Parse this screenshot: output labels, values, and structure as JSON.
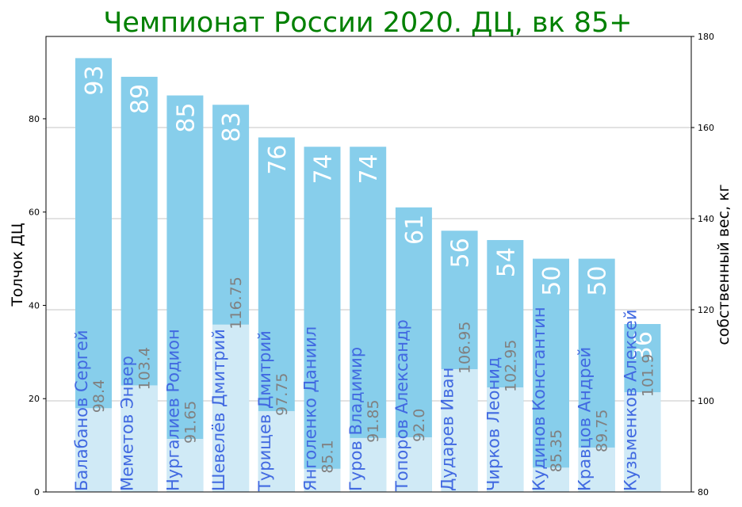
{
  "chart_data": {
    "type": "bar",
    "title": "Чемпионат России 2020. ДЦ, вк 85+",
    "ylabel": "Толчок ДЦ",
    "y2label": "собственный вес, кг",
    "categories": [
      "Балабанов Сергей",
      "Меметов Энвер",
      "Нургалиев Родион",
      "Шевелёв Дмитрий",
      "Турищев Дмитрий",
      "Янголенко Даниил",
      "Гуров Владимир",
      "Топоров Александр",
      "Дударев Иван",
      "Чирков Леонид",
      "Кудинов Константин",
      "Кравцов Андрей",
      "Кузьменков Алексей"
    ],
    "series": [
      {
        "values": [
          93,
          89,
          85,
          83,
          76,
          74,
          74,
          61,
          56,
          54,
          50,
          50,
          36
        ],
        "axis": "left",
        "color": "#87ceeb"
      },
      {
        "values": [
          98.4,
          103.4,
          91.65,
          116.75,
          97.75,
          85.1,
          91.85,
          92.0,
          106.95,
          102.95,
          85.35,
          89.75,
          101.9
        ],
        "axis": "right",
        "color": "#d0eaf6"
      }
    ],
    "value_labels": [
      "93",
      "89",
      "85",
      "83",
      "76",
      "74",
      "74",
      "61",
      "56",
      "54",
      "50",
      "50",
      "36"
    ],
    "weight_labels": [
      "98.4",
      "103.4",
      "91.65",
      "116.75",
      "97.75",
      "85.1",
      "91.85",
      "92.0",
      "106.95",
      "102.95",
      "85.35",
      "89.75",
      "101.9"
    ],
    "ylim": [
      0,
      97.65
    ],
    "y2lim": [
      80,
      180
    ],
    "yticks": [
      0,
      20,
      40,
      60,
      80
    ],
    "y2ticks": [
      80,
      100,
      120,
      140,
      160,
      180
    ],
    "grid": "horizontal, right axis"
  }
}
